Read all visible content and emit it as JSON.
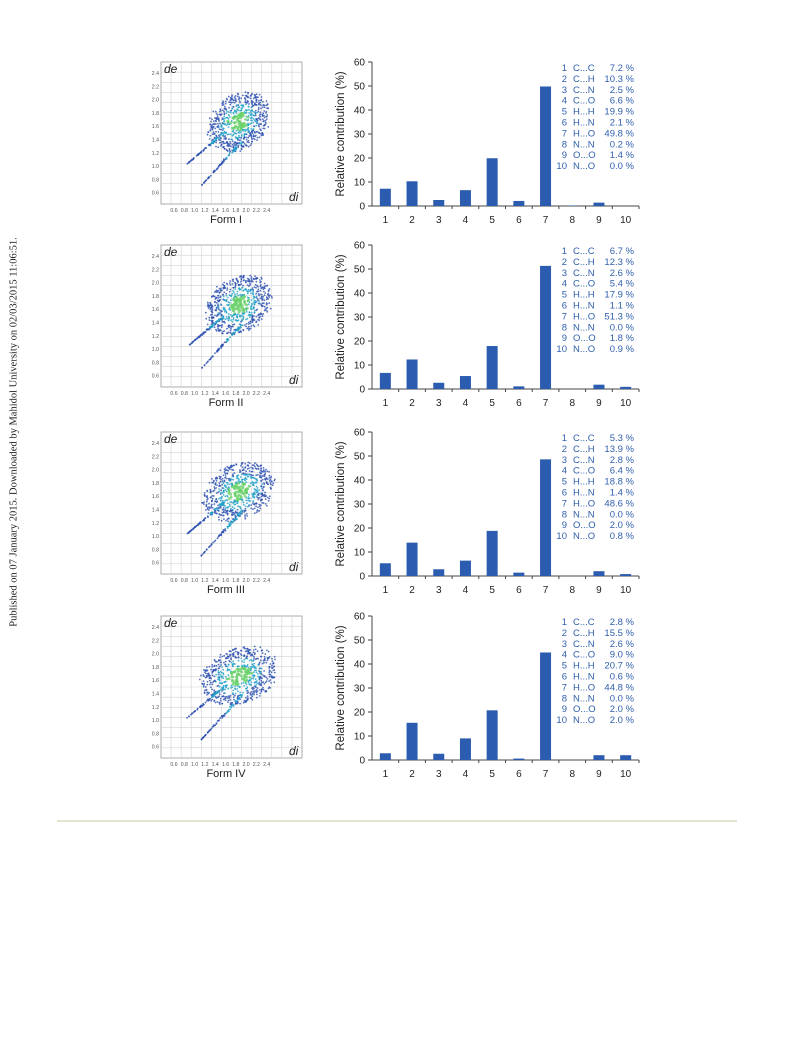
{
  "side_note": "Published on 07 January 2015. Downloaded by Mahidol University on 02/03/2015 11:06:51.",
  "colors": {
    "bar": "#2b5cb0",
    "legend_text": "#2f5fae",
    "grid": "#d2d2d2",
    "fp_blue": "#2a4fb0",
    "fp_cyan": "#1ea0c8",
    "fp_green": "#6bd26b"
  },
  "fingerprint": {
    "y_name": "de",
    "x_name": "di",
    "y_ticks": [
      "2.4",
      "2.2",
      "2.0",
      "1.8",
      "1.6",
      "1.4",
      "1.2",
      "1.0",
      "0.8",
      "0.6"
    ],
    "x_ticks": [
      "0.6",
      "0.8",
      "1.0",
      "1.2",
      "1.4",
      "1.6",
      "1.8",
      "2.0",
      "2.2",
      "2.4"
    ]
  },
  "chart_data": [
    {
      "type": "bar",
      "form": "Form I",
      "ylabel": "Relative contribution  (%)",
      "categories": [
        "1",
        "2",
        "3",
        "4",
        "5",
        "6",
        "7",
        "8",
        "9",
        "10"
      ],
      "values": [
        7.2,
        10.3,
        2.5,
        6.6,
        19.9,
        2.1,
        49.8,
        0.2,
        1.4,
        0.0
      ],
      "yticks": [
        "0",
        "10",
        "20",
        "30",
        "40",
        "50",
        "60"
      ],
      "ylim": [
        0,
        60
      ],
      "legend": [
        {
          "num": "1",
          "contact": "C...C",
          "pct": "7.2 %"
        },
        {
          "num": "2",
          "contact": "C...H",
          "pct": "10.3 %"
        },
        {
          "num": "3",
          "contact": "C...N",
          "pct": "2.5 %"
        },
        {
          "num": "4",
          "contact": "C...O",
          "pct": "6.6 %"
        },
        {
          "num": "5",
          "contact": "H...H",
          "pct": "19.9 %"
        },
        {
          "num": "6",
          "contact": "H...N",
          "pct": "2.1 %"
        },
        {
          "num": "7",
          "contact": "H...O",
          "pct": "49.8 %"
        },
        {
          "num": "8",
          "contact": "N...N",
          "pct": "0.2 %"
        },
        {
          "num": "9",
          "contact": "O...O",
          "pct": "1.4 %"
        },
        {
          "num": "10",
          "contact": "N...O",
          "pct": "0.0 %"
        }
      ]
    },
    {
      "type": "bar",
      "form": "Form II",
      "ylabel": "Relative contribution  (%)",
      "categories": [
        "1",
        "2",
        "3",
        "4",
        "5",
        "6",
        "7",
        "8",
        "9",
        "10"
      ],
      "values": [
        6.7,
        12.3,
        2.6,
        5.4,
        17.9,
        1.1,
        51.3,
        0.0,
        1.8,
        0.9
      ],
      "yticks": [
        "0",
        "10",
        "20",
        "30",
        "40",
        "50",
        "60"
      ],
      "ylim": [
        0,
        60
      ],
      "legend": [
        {
          "num": "1",
          "contact": "C...C",
          "pct": "6.7 %"
        },
        {
          "num": "2",
          "contact": "C...H",
          "pct": "12.3 %"
        },
        {
          "num": "3",
          "contact": "C...N",
          "pct": "2.6 %"
        },
        {
          "num": "4",
          "contact": "C...O",
          "pct": "5.4 %"
        },
        {
          "num": "5",
          "contact": "H...H",
          "pct": "17.9 %"
        },
        {
          "num": "6",
          "contact": "H...N",
          "pct": "1.1 %"
        },
        {
          "num": "7",
          "contact": "H...O",
          "pct": "51.3 %"
        },
        {
          "num": "8",
          "contact": "N...N",
          "pct": "0.0 %"
        },
        {
          "num": "9",
          "contact": "O...O",
          "pct": "1.8 %"
        },
        {
          "num": "10",
          "contact": "N...O",
          "pct": "0.9 %"
        }
      ]
    },
    {
      "type": "bar",
      "form": "Form III",
      "ylabel": "Relative contribution  (%)",
      "categories": [
        "1",
        "2",
        "3",
        "4",
        "5",
        "6",
        "7",
        "8",
        "9",
        "10"
      ],
      "values": [
        5.3,
        13.9,
        2.8,
        6.4,
        18.8,
        1.4,
        48.6,
        0.0,
        2.0,
        0.8
      ],
      "yticks": [
        "0",
        "10",
        "20",
        "30",
        "40",
        "50",
        "60"
      ],
      "ylim": [
        0,
        60
      ],
      "legend": [
        {
          "num": "1",
          "contact": "C...C",
          "pct": "5.3 %"
        },
        {
          "num": "2",
          "contact": "C...H",
          "pct": "13.9 %"
        },
        {
          "num": "3",
          "contact": "C...N",
          "pct": "2.8 %"
        },
        {
          "num": "4",
          "contact": "C...O",
          "pct": "6.4 %"
        },
        {
          "num": "5",
          "contact": "H...H",
          "pct": "18.8 %"
        },
        {
          "num": "6",
          "contact": "H...N",
          "pct": "1.4 %"
        },
        {
          "num": "7",
          "contact": "H...O",
          "pct": "48.6 %"
        },
        {
          "num": "8",
          "contact": "N...N",
          "pct": "0.0 %"
        },
        {
          "num": "9",
          "contact": "O...O",
          "pct": "2.0 %"
        },
        {
          "num": "10",
          "contact": "N...O",
          "pct": "0.8 %"
        }
      ]
    },
    {
      "type": "bar",
      "form": "Form IV",
      "ylabel": "Relative contribution  (%)",
      "categories": [
        "1",
        "2",
        "3",
        "4",
        "5",
        "6",
        "7",
        "8",
        "9",
        "10"
      ],
      "values": [
        2.8,
        15.5,
        2.6,
        9.0,
        20.7,
        0.6,
        44.8,
        0.0,
        2.0,
        2.0
      ],
      "yticks": [
        "0",
        "10",
        "20",
        "30",
        "40",
        "50",
        "60"
      ],
      "ylim": [
        0,
        60
      ],
      "legend": [
        {
          "num": "1",
          "contact": "C...C",
          "pct": "2.8 %"
        },
        {
          "num": "2",
          "contact": "C...H",
          "pct": "15.5 %"
        },
        {
          "num": "3",
          "contact": "C...N",
          "pct": "2.6 %"
        },
        {
          "num": "4",
          "contact": "C...O",
          "pct": "9.0 %"
        },
        {
          "num": "5",
          "contact": "H...H",
          "pct": "20.7 %"
        },
        {
          "num": "6",
          "contact": "H...N",
          "pct": "0.6 %"
        },
        {
          "num": "7",
          "contact": "H...O",
          "pct": "44.8 %"
        },
        {
          "num": "8",
          "contact": "N...N",
          "pct": "0.0 %"
        },
        {
          "num": "9",
          "contact": "O...O",
          "pct": "2.0 %"
        },
        {
          "num": "10",
          "contact": "N...O",
          "pct": "2.0 %"
        }
      ]
    }
  ]
}
